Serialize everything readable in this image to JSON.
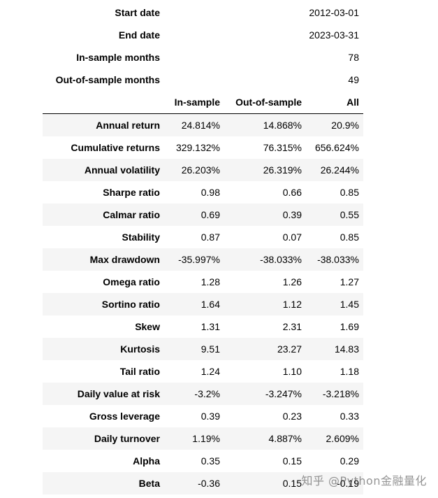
{
  "summary": [
    {
      "label": "Start date",
      "value": "2012-03-01"
    },
    {
      "label": "End date",
      "value": "2023-03-31"
    },
    {
      "label": "In-sample months",
      "value": "78"
    },
    {
      "label": "Out-of-sample months",
      "value": "49"
    }
  ],
  "columns": [
    "In-sample",
    "Out-of-sample",
    "All"
  ],
  "rows": [
    {
      "label": "Annual return",
      "values": [
        "24.814%",
        "14.868%",
        "20.9%"
      ]
    },
    {
      "label": "Cumulative returns",
      "values": [
        "329.132%",
        "76.315%",
        "656.624%"
      ]
    },
    {
      "label": "Annual volatility",
      "values": [
        "26.203%",
        "26.319%",
        "26.244%"
      ]
    },
    {
      "label": "Sharpe ratio",
      "values": [
        "0.98",
        "0.66",
        "0.85"
      ]
    },
    {
      "label": "Calmar ratio",
      "values": [
        "0.69",
        "0.39",
        "0.55"
      ]
    },
    {
      "label": "Stability",
      "values": [
        "0.87",
        "0.07",
        "0.85"
      ]
    },
    {
      "label": "Max drawdown",
      "values": [
        "-35.997%",
        "-38.033%",
        "-38.033%"
      ]
    },
    {
      "label": "Omega ratio",
      "values": [
        "1.28",
        "1.26",
        "1.27"
      ]
    },
    {
      "label": "Sortino ratio",
      "values": [
        "1.64",
        "1.12",
        "1.45"
      ]
    },
    {
      "label": "Skew",
      "values": [
        "1.31",
        "2.31",
        "1.69"
      ]
    },
    {
      "label": "Kurtosis",
      "values": [
        "9.51",
        "23.27",
        "14.83"
      ]
    },
    {
      "label": "Tail ratio",
      "values": [
        "1.24",
        "1.10",
        "1.18"
      ]
    },
    {
      "label": "Daily value at risk",
      "values": [
        "-3.2%",
        "-3.247%",
        "-3.218%"
      ]
    },
    {
      "label": "Gross leverage",
      "values": [
        "0.39",
        "0.23",
        "0.33"
      ]
    },
    {
      "label": "Daily turnover",
      "values": [
        "1.19%",
        "4.887%",
        "2.609%"
      ]
    },
    {
      "label": "Alpha",
      "values": [
        "0.35",
        "0.15",
        "0.29"
      ]
    },
    {
      "label": "Beta",
      "values": [
        "-0.36",
        "0.15",
        "-0.19"
      ]
    }
  ],
  "watermark": "知乎 @Python金融量化"
}
